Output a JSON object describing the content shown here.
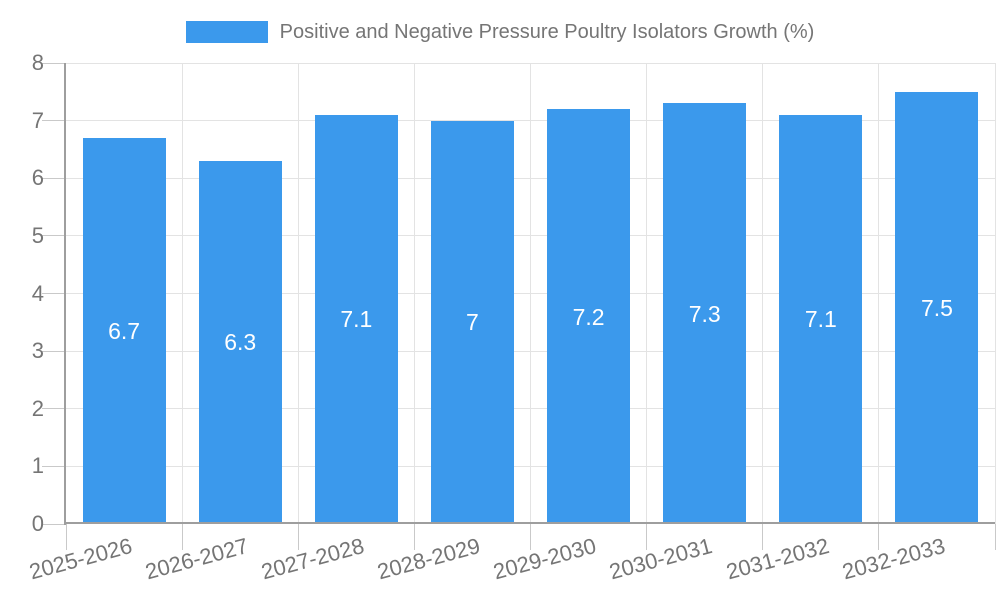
{
  "chart_data": {
    "type": "bar",
    "title": "Positive and Negative Pressure Poultry Isolators Growth (%)",
    "categories": [
      "2025-2026",
      "2026-2027",
      "2027-2028",
      "2028-2029",
      "2029-2030",
      "2030-2031",
      "2031-2032",
      "2032-2033"
    ],
    "values": [
      6.7,
      6.3,
      7.1,
      7,
      7.2,
      7.3,
      7.1,
      7.5
    ],
    "value_labels": [
      "6.7",
      "6.3",
      "7.1",
      "7",
      "7.2",
      "7.3",
      "7.1",
      "7.5"
    ],
    "xlabel": "",
    "ylabel": "",
    "ylim": [
      0,
      8
    ],
    "yticks": [
      "0",
      "1",
      "2",
      "3",
      "4",
      "5",
      "6",
      "7",
      "8"
    ],
    "grid": true,
    "legend_position": "top-center",
    "colors": {
      "bar": "#3B99EC",
      "grid": "#E3E3E3",
      "tick": "#C9C9C9",
      "axis": "#9E9E9E",
      "text": "#757575",
      "value_text": "#FFFFFF",
      "background": "#FFFFFF"
    }
  }
}
